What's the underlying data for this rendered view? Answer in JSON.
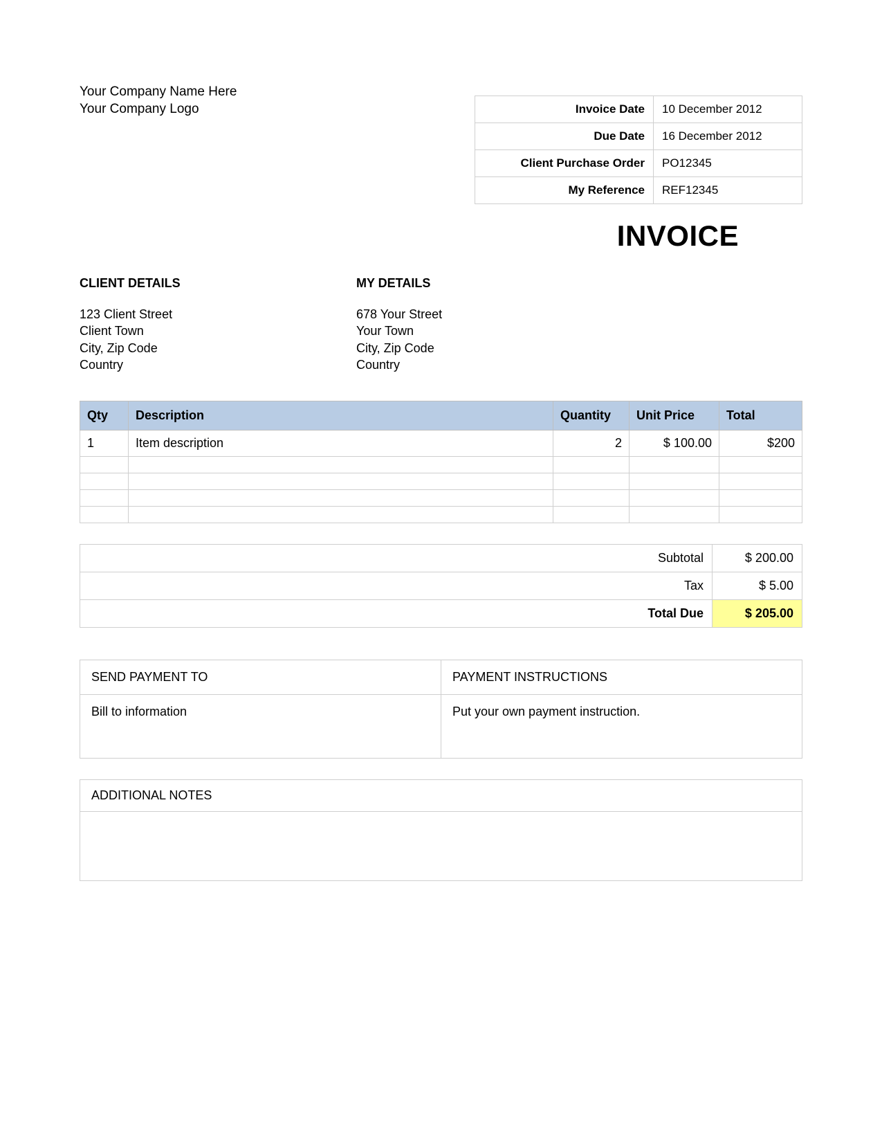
{
  "company": {
    "name": "Your Company Name Here",
    "logo": "Your Company Logo"
  },
  "meta": {
    "invoice_date_label": "Invoice Date",
    "invoice_date": "10 December  2012",
    "due_date_label": "Due Date",
    "due_date": "16 December  2012",
    "cpo_label": "Client Purchase Order",
    "cpo": "PO12345",
    "ref_label": "My Reference",
    "ref": "REF12345"
  },
  "title": "INVOICE",
  "client_details": {
    "heading": "CLIENT DETAILS",
    "line1": "123 Client Street",
    "line2": "Client Town",
    "line3": "City, Zip Code",
    "line4": "Country"
  },
  "my_details": {
    "heading": "MY DETAILS",
    "line1": "678 Your Street",
    "line2": "Your Town",
    "line3": "City, Zip Code",
    "line4": "Country"
  },
  "items": {
    "headers": {
      "qty": "Qty",
      "description": "Description",
      "quantity": "Quantity",
      "unit_price": "Unit Price",
      "total": "Total"
    },
    "row1": {
      "qty": "1",
      "description": "Item description",
      "quantity": "2",
      "unit_price": "$ 100.00",
      "total": "$200"
    }
  },
  "totals": {
    "subtotal_label": "Subtotal",
    "subtotal": "$ 200.00",
    "tax_label": "Tax",
    "tax": "$ 5.00",
    "total_due_label": "Total Due",
    "total_due": "$ 205.00"
  },
  "payment": {
    "send_to_heading": "SEND PAYMENT TO",
    "instructions_heading": "PAYMENT INSTRUCTIONS",
    "send_to_body": "Bill to information",
    "instructions_body": "Put your own payment instruction."
  },
  "notes": {
    "heading": "ADDITIONAL NOTES",
    "body": ""
  },
  "colors": {
    "header_bg": "#b8cce4",
    "highlight": "#ffff99",
    "border": "#cfcfcf"
  }
}
